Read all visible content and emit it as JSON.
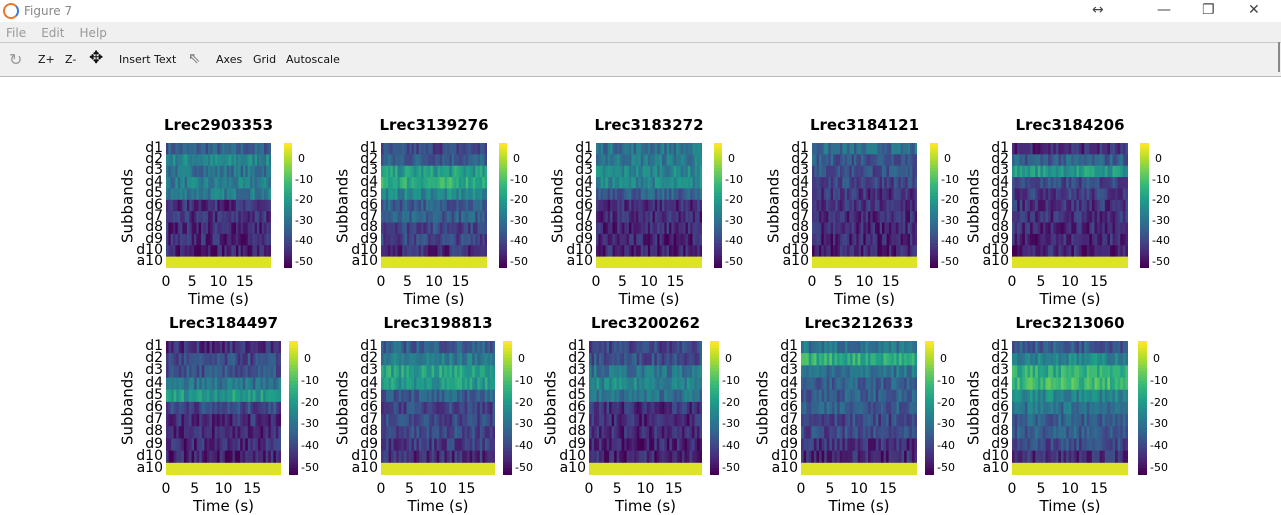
{
  "window": {
    "title": "Figure 7",
    "minimize": "—",
    "maximize": "❐",
    "close": "✕",
    "resize_cursor": "↔"
  },
  "menu": [
    "File",
    "Edit",
    "Help"
  ],
  "toolbar": {
    "rotate_icon": "rotate-icon",
    "zoom_in": "Z+",
    "zoom_out": "Z-",
    "pan_icon": "pan-icon",
    "insert_text": "Insert Text",
    "select_icon": "pointer-icon",
    "axes": "Axes",
    "grid": "Grid",
    "autoscale": "Autoscale"
  },
  "chart_data": {
    "type": "heatmap",
    "ylabel": "Subbands",
    "xlabel": "Time (s)",
    "bands": [
      "d1",
      "d2",
      "d3",
      "d4",
      "d5",
      "d6",
      "d7",
      "d8",
      "d9",
      "d10",
      "a10"
    ],
    "xticks": [
      "0",
      "5",
      "10",
      "15"
    ],
    "xlim": [
      0,
      20
    ],
    "colorbar_ticks": [
      "0",
      "-10",
      "-20",
      "-30",
      "-40",
      "-50"
    ],
    "clim": [
      -53,
      8
    ],
    "colormap": "viridis",
    "subplots": [
      {
        "title": "Lrec2903353",
        "band_means": [
          -35,
          -25,
          -30,
          -28,
          -28,
          -45,
          -45,
          -46,
          -46,
          -47,
          5
        ]
      },
      {
        "title": "Lrec3139276",
        "band_means": [
          -40,
          -35,
          -20,
          -15,
          -25,
          -35,
          -35,
          -40,
          -40,
          -45,
          5
        ]
      },
      {
        "title": "Lrec3183272",
        "band_means": [
          -30,
          -28,
          -25,
          -25,
          -35,
          -45,
          -46,
          -46,
          -47,
          -47,
          5
        ]
      },
      {
        "title": "Lrec3184121",
        "band_means": [
          -32,
          -36,
          -38,
          -40,
          -44,
          -45,
          -46,
          -46,
          -47,
          -47,
          5
        ]
      },
      {
        "title": "Lrec3184206",
        "band_means": [
          -45,
          -35,
          -20,
          -40,
          -42,
          -44,
          -45,
          -46,
          -46,
          -47,
          5
        ]
      },
      {
        "title": "Lrec3184497",
        "band_means": [
          -45,
          -40,
          -38,
          -30,
          -20,
          -40,
          -45,
          -46,
          -46,
          -47,
          5
        ]
      },
      {
        "title": "Lrec3198813",
        "band_means": [
          -35,
          -28,
          -18,
          -20,
          -35,
          -40,
          -40,
          -40,
          -42,
          -45,
          5
        ]
      },
      {
        "title": "Lrec3200262",
        "band_means": [
          -40,
          -38,
          -30,
          -25,
          -30,
          -45,
          -46,
          -46,
          -47,
          -47,
          5
        ]
      },
      {
        "title": "Lrec3212633",
        "band_means": [
          -30,
          -15,
          -30,
          -35,
          -35,
          -35,
          -40,
          -40,
          -45,
          -46,
          5
        ]
      },
      {
        "title": "Lrec3213060",
        "band_means": [
          -35,
          -25,
          -15,
          -12,
          -25,
          -30,
          -35,
          -35,
          -40,
          -45,
          5
        ]
      }
    ]
  }
}
